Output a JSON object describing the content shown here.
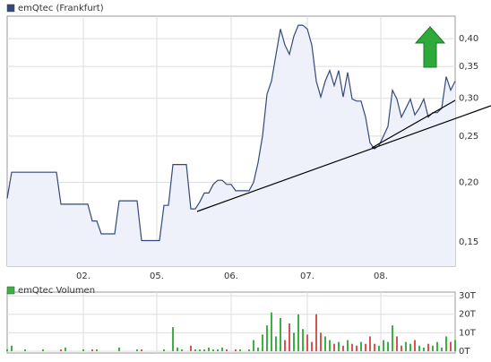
{
  "chart_data": [
    {
      "type": "line",
      "log_scale": true,
      "grid": true,
      "fill": "#eef0fa",
      "xlim": [
        0,
        100
      ],
      "xticks": [
        {
          "value": 17,
          "label": "02."
        },
        {
          "value": 33.4,
          "label": "05."
        },
        {
          "value": 50,
          "label": "06."
        },
        {
          "value": 67,
          "label": "07."
        },
        {
          "value": 83.4,
          "label": "08."
        }
      ],
      "ylim": [
        0.1335,
        0.446
      ],
      "yticks": [
        {
          "value": 0.15,
          "label": "0,15"
        },
        {
          "value": 0.2,
          "label": "0,20"
        },
        {
          "value": 0.25,
          "label": "0,25"
        },
        {
          "value": 0.3,
          "label": "0,30"
        },
        {
          "value": 0.35,
          "label": "0,35"
        },
        {
          "value": 0.4,
          "label": "0,40"
        }
      ],
      "x": [
        0,
        1,
        2,
        3,
        4,
        5,
        6,
        7,
        8,
        9,
        10,
        11,
        12,
        13,
        14,
        15,
        16,
        17,
        18,
        19,
        20,
        21,
        22,
        23,
        24,
        25,
        26,
        27,
        28,
        29,
        30,
        31,
        32,
        33,
        34,
        35,
        36,
        37,
        38,
        39,
        40,
        41,
        42,
        43,
        44,
        45,
        46,
        47,
        48,
        49,
        50,
        51,
        52,
        53,
        54,
        55,
        56,
        57,
        58,
        59,
        60,
        61,
        62,
        63,
        64,
        65,
        66,
        67,
        68,
        69,
        70,
        71,
        72,
        73,
        74,
        75,
        76,
        77,
        78,
        79,
        80,
        81,
        82,
        83,
        84,
        85,
        86,
        87,
        88,
        89,
        90,
        91,
        92,
        93,
        94,
        95,
        96,
        97,
        98,
        99,
        100
      ],
      "series": [
        {
          "name": "emQtec (Frankfurt)",
          "color": "#34497a",
          "values": [
            0.185,
            0.21,
            0.21,
            0.21,
            0.21,
            0.21,
            0.21,
            0.21,
            0.21,
            0.21,
            0.21,
            0.21,
            0.18,
            0.18,
            0.18,
            0.18,
            0.18,
            0.18,
            0.18,
            0.166,
            0.166,
            0.156,
            0.156,
            0.156,
            0.156,
            0.183,
            0.183,
            0.183,
            0.183,
            0.183,
            0.151,
            0.151,
            0.151,
            0.151,
            0.151,
            0.179,
            0.179,
            0.218,
            0.218,
            0.218,
            0.218,
            0.176,
            0.176,
            0.182,
            0.19,
            0.19,
            0.198,
            0.202,
            0.202,
            0.198,
            0.198,
            0.192,
            0.192,
            0.192,
            0.192,
            0.2,
            0.22,
            0.25,
            0.306,
            0.326,
            0.37,
            0.419,
            0.388,
            0.371,
            0.405,
            0.427,
            0.427,
            0.419,
            0.388,
            0.326,
            0.302,
            0.326,
            0.343,
            0.319,
            0.343,
            0.302,
            0.34,
            0.299,
            0.296,
            0.296,
            0.274,
            0.242,
            0.235,
            0.239,
            0.25,
            0.262,
            0.312,
            0.299,
            0.274,
            0.286,
            0.299,
            0.277,
            0.286,
            0.299,
            0.274,
            0.28,
            0.28,
            0.286,
            0.333,
            0.312,
            0.326
          ]
        }
      ]
    },
    {
      "type": "bar",
      "grid": true,
      "xlim": [
        0,
        100
      ],
      "ylim": [
        -1,
        32
      ],
      "yticks": [
        {
          "value": 0,
          "label": "0T"
        },
        {
          "value": 10,
          "label": "10T"
        },
        {
          "value": 20,
          "label": "20T"
        },
        {
          "value": 30,
          "label": "30T"
        }
      ],
      "down_color": "#d9534f",
      "x": [
        0,
        1,
        2,
        3,
        4,
        5,
        6,
        7,
        8,
        9,
        10,
        11,
        12,
        13,
        14,
        15,
        16,
        17,
        18,
        19,
        20,
        21,
        22,
        23,
        24,
        25,
        26,
        27,
        28,
        29,
        30,
        31,
        32,
        33,
        34,
        35,
        36,
        37,
        38,
        39,
        40,
        41,
        42,
        43,
        44,
        45,
        46,
        47,
        48,
        49,
        50,
        51,
        52,
        53,
        54,
        55,
        56,
        57,
        58,
        59,
        60,
        61,
        62,
        63,
        64,
        65,
        66,
        67,
        68,
        69,
        70,
        71,
        72,
        73,
        74,
        75,
        76,
        77,
        78,
        79,
        80,
        81,
        82,
        83,
        84,
        85,
        86,
        87,
        88,
        89,
        90,
        91,
        92,
        93,
        94,
        95,
        96,
        97,
        98,
        99,
        100
      ],
      "series": [
        {
          "name": "emQtec Volumen",
          "color": "#3cb043",
          "values": [
            1,
            3,
            0,
            0,
            1,
            0,
            0,
            0,
            1,
            0,
            0,
            0,
            1,
            2,
            0,
            0,
            0,
            1,
            0,
            1,
            1,
            0,
            0,
            0,
            0,
            2,
            0,
            0,
            0,
            1,
            1,
            0,
            0,
            0,
            0,
            1,
            0,
            13,
            2,
            1,
            0,
            3,
            1,
            1,
            1,
            2,
            1,
            1,
            2,
            1,
            0,
            1,
            1,
            0,
            1,
            6,
            2,
            9,
            14,
            21,
            8,
            18,
            6,
            15,
            10,
            20,
            12,
            9,
            5,
            20,
            10,
            8,
            6,
            4,
            5,
            3,
            6,
            4,
            3,
            5,
            4,
            8,
            4,
            3,
            6,
            5,
            14,
            8,
            3,
            5,
            4,
            6,
            3,
            2,
            4,
            3,
            5,
            2,
            8,
            5,
            6
          ]
        }
      ]
    }
  ]
}
